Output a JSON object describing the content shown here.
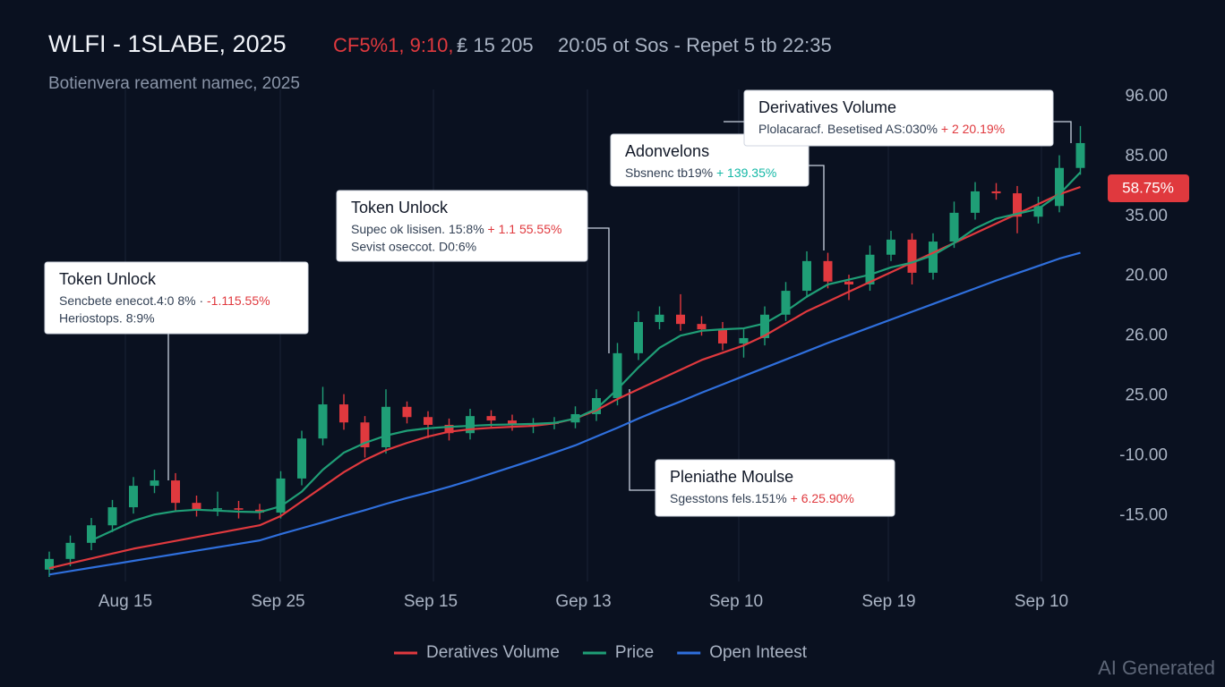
{
  "chart_data": {
    "type": "candlestick",
    "title": "WLFI - 1SLABE, 2025",
    "header_alert": "CF5%1, 9:10,",
    "header_meta": "₤ 15 205",
    "header_time": "20:05 ot Sos - Repet 5 tb 22:35",
    "subtitle": "Botienvera reament namec, 2025",
    "ylim": [
      0,
      100
    ],
    "y_axis_labels": [
      "96.00",
      "85.00",
      "35.00",
      "20.00",
      "26.00",
      "25.00",
      "-10.00",
      "-15.00"
    ],
    "x_axis_labels": [
      "Aug 15",
      "Sep 25",
      "Sep 15",
      "Gep 13",
      "Sep 10",
      "Sep 19",
      "Sep 10"
    ],
    "up_color": "#1f9e76",
    "down_color": "#e0393e",
    "candles": {
      "open": [
        1.5,
        3.7,
        7.0,
        10.6,
        14.3,
        18.7,
        19.8,
        15.2,
        13.9,
        14.1,
        13.8,
        13.2,
        20.2,
        28.4,
        35.4,
        31.7,
        26.6,
        34.9,
        32.8,
        31.2,
        29.5,
        33.0,
        32.1,
        31.2,
        31.4,
        31.7,
        33.4,
        36.7,
        45.9,
        52.3,
        53.8,
        51.9,
        50.8,
        47.9,
        49.0,
        53.8,
        58.7,
        64.8,
        60.6,
        60.0,
        66.1,
        69.2,
        62.4,
        68.8,
        74.7,
        79.1,
        78.7,
        73.9,
        76.1,
        83.9
      ],
      "high": [
        5.2,
        8.5,
        12.1,
        15.8,
        20.5,
        22.0,
        21.3,
        16.7,
        17.5,
        15.6,
        15.0,
        21.7,
        30.0,
        39.0,
        37.5,
        33.0,
        38.5,
        36.0,
        34.0,
        32.5,
        34.5,
        34.2,
        33.3,
        32.6,
        32.8,
        35.0,
        38.5,
        48.0,
        54.5,
        55.5,
        58.0,
        53.5,
        52.3,
        50.8,
        55.5,
        60.5,
        66.8,
        66.5,
        62.0,
        68.0,
        71.0,
        70.5,
        70.5,
        77.0,
        81.0,
        80.8,
        80.2,
        78.0,
        86.5,
        92.5
      ],
      "low": [
        0.0,
        2.2,
        5.5,
        9.2,
        13.0,
        17.2,
        13.5,
        12.4,
        12.5,
        12.0,
        11.8,
        12.0,
        18.8,
        27.0,
        30.2,
        24.5,
        25.3,
        31.5,
        28.5,
        28.0,
        28.2,
        30.8,
        30.0,
        29.5,
        30.3,
        30.5,
        32.0,
        35.2,
        44.5,
        50.8,
        50.5,
        49.5,
        46.5,
        45.0,
        47.5,
        52.5,
        57.3,
        59.2,
        56.8,
        58.7,
        64.8,
        60.0,
        61.0,
        67.5,
        73.3,
        77.4,
        70.5,
        72.5,
        74.8,
        82.5
      ],
      "close": [
        3.7,
        7.0,
        10.6,
        14.3,
        18.7,
        19.8,
        15.2,
        13.9,
        14.1,
        13.8,
        13.2,
        20.2,
        28.4,
        35.4,
        31.7,
        26.6,
        34.9,
        32.8,
        31.2,
        29.5,
        33.0,
        32.1,
        31.2,
        31.4,
        31.7,
        33.4,
        36.7,
        45.9,
        52.3,
        53.8,
        51.9,
        50.8,
        47.9,
        49.0,
        53.8,
        58.7,
        64.8,
        60.6,
        60.0,
        66.1,
        69.2,
        62.4,
        68.8,
        74.7,
        79.1,
        78.7,
        73.9,
        76.1,
        83.9,
        89.0
      ]
    },
    "series": [
      {
        "name": "Deratives Volume",
        "color": "#e0393e",
        "values": [
          1.8,
          2.8,
          3.8,
          4.8,
          5.8,
          6.6,
          7.4,
          8.2,
          9.0,
          9.8,
          10.6,
          12.5,
          15.5,
          18.5,
          21.5,
          24.0,
          26.0,
          27.5,
          28.8,
          29.8,
          30.3,
          30.6,
          30.8,
          31.0,
          31.5,
          32.5,
          34.2,
          36.5,
          38.5,
          40.5,
          42.5,
          44.5,
          46.0,
          47.5,
          49.5,
          52.0,
          54.5,
          56.5,
          58.5,
          60.5,
          62.5,
          64.5,
          66.5,
          68.5,
          70.5,
          72.5,
          74.5,
          76.5,
          78.5,
          80.0
        ]
      },
      {
        "name": "Price",
        "color": "#1f9e76",
        "values": [
          null,
          null,
          7.5,
          9.5,
          11.5,
          12.8,
          13.5,
          13.8,
          13.6,
          13.4,
          13.3,
          14.5,
          17.5,
          22.0,
          25.5,
          27.5,
          29.0,
          30.0,
          30.5,
          30.8,
          31.0,
          31.2,
          31.3,
          31.4,
          31.6,
          32.5,
          34.5,
          38.5,
          43.0,
          47.0,
          49.5,
          50.5,
          50.8,
          51.0,
          52.0,
          54.5,
          57.5,
          60.0,
          61.0,
          62.0,
          63.5,
          64.5,
          66.0,
          68.5,
          71.5,
          73.5,
          74.5,
          75.5,
          78.5,
          83.0
        ]
      },
      {
        "name": "Open Inteest",
        "color": "#2f6fdc",
        "values": [
          0.5,
          1.2,
          1.9,
          2.6,
          3.3,
          4.0,
          4.7,
          5.4,
          6.1,
          6.8,
          7.5,
          8.8,
          10.0,
          11.2,
          12.5,
          13.7,
          15.0,
          16.2,
          17.3,
          18.5,
          19.8,
          21.2,
          22.6,
          24.0,
          25.5,
          27.0,
          28.8,
          30.6,
          32.5,
          34.3,
          36.0,
          37.8,
          39.5,
          41.2,
          42.9,
          44.6,
          46.3,
          48.0,
          49.6,
          51.2,
          52.8,
          54.4,
          56.0,
          57.6,
          59.2,
          60.8,
          62.3,
          63.8,
          65.3,
          66.5
        ]
      }
    ],
    "price_tag": "58.75%",
    "annotations": [
      {
        "title": "Token Unlock",
        "text": "Sencbete enecot.4:0 8%  · ",
        "highlight": "-1.115.55%",
        "highlight_color": "#e0393e",
        "text2": "Heriostops. 8:9%"
      },
      {
        "title": "Token Unlock",
        "text": "Supec ok lisisen. 15:8% ",
        "highlight": "+ 1.1 55.55%",
        "highlight_color": "#e0393e",
        "text2": "Sevist oseccot. D0:6%"
      },
      {
        "title": "Adonvelons",
        "text": "Sbsnenc tb19% ",
        "highlight": "+ 139.35%",
        "highlight_color": "#14b8a6"
      },
      {
        "title": "Derivatives Volume",
        "text": "Plolacaracf. Besetised AS:030% ",
        "highlight": "+ 2 20.19%",
        "highlight_color": "#e0393e"
      },
      {
        "title": "Pleniathe Moulse",
        "text": "Sgesstons fels.151% ",
        "highlight": "+ 6.25.90%",
        "highlight_color": "#e0393e"
      }
    ],
    "watermark": "AI Generated"
  }
}
